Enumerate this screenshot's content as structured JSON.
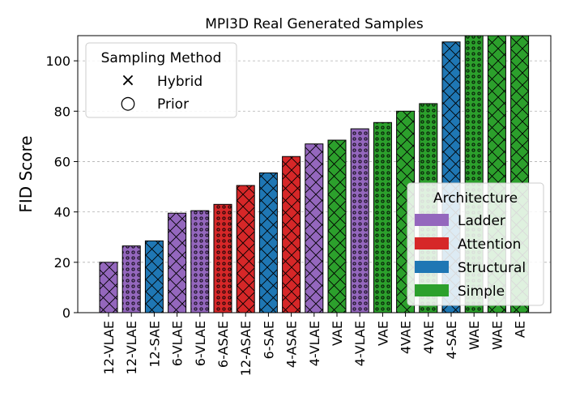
{
  "chart_data": {
    "type": "bar",
    "title": "MPI3D Real Generated Samples",
    "xlabel": "",
    "ylabel": "FID Score",
    "ylim": [
      0,
      110
    ],
    "yticks": [
      0,
      20,
      40,
      60,
      80,
      100
    ],
    "grid": "horizontal dashed",
    "categories": [
      "12-VLAE",
      "12-VLAE",
      "12-SAE",
      "6-VLAE",
      "6-VLAE",
      "6-ASAE",
      "12-ASAE",
      "6-SAE",
      "4-ASAE",
      "4-VLAE",
      "VAE",
      "4-VLAE",
      "VAE",
      "4VAE",
      "4VAE",
      "4-SAE",
      "WAE",
      "WAE",
      "AE"
    ],
    "values": [
      20,
      26.5,
      28.5,
      39.5,
      40.5,
      43,
      50.5,
      55.5,
      62,
      67,
      68.5,
      73,
      75.5,
      80,
      83,
      107.5,
      110,
      110,
      110
    ],
    "architecture": [
      "Ladder",
      "Ladder",
      "Structural",
      "Ladder",
      "Ladder",
      "Attention",
      "Attention",
      "Structural",
      "Attention",
      "Ladder",
      "Simple",
      "Ladder",
      "Simple",
      "Simple",
      "Simple",
      "Structural",
      "Simple",
      "Simple",
      "Simple"
    ],
    "sampling": [
      "Hybrid",
      "Prior",
      "Hybrid",
      "Hybrid",
      "Prior",
      "Prior",
      "Hybrid",
      "Hybrid",
      "Hybrid",
      "Hybrid",
      "Hybrid",
      "Prior",
      "Prior",
      "Hybrid",
      "Prior",
      "Hybrid",
      "Prior",
      "Hybrid",
      "Hybrid"
    ],
    "sampling_legend": {
      "title": "Sampling Method",
      "placement": "upper-left",
      "entries": [
        {
          "name": "Hybrid",
          "marker": "×"
        },
        {
          "name": "Prior",
          "marker": "○"
        }
      ]
    },
    "architecture_legend": {
      "title": "Architecture",
      "placement": "lower-right",
      "entries": [
        {
          "name": "Ladder",
          "color": "#9467bd"
        },
        {
          "name": "Attention",
          "color": "#d62728"
        },
        {
          "name": "Structural",
          "color": "#1f77b4"
        },
        {
          "name": "Simple",
          "color": "#2ca02c"
        }
      ]
    }
  }
}
